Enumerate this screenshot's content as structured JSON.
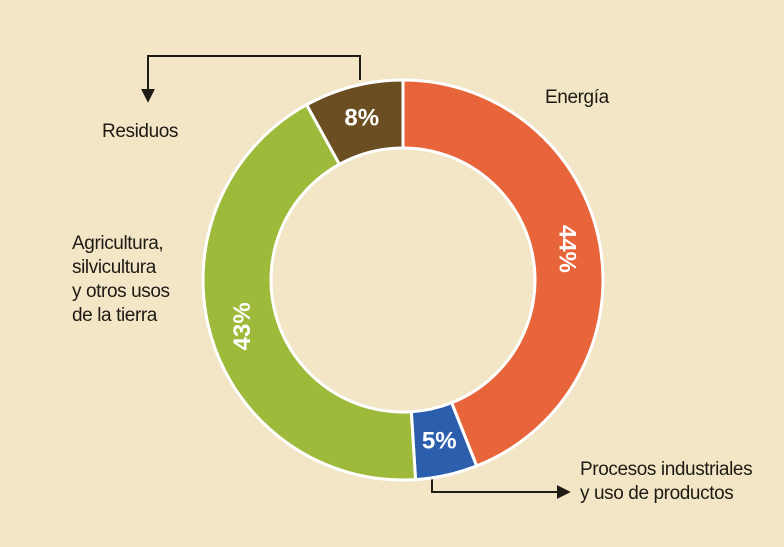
{
  "chart_data": {
    "type": "donut",
    "categories": [
      "Energía",
      "Procesos industriales\ny uso de productos",
      "Agricultura,\nsilvicultura\ny otros usos\nde la tierra",
      "Residuos"
    ],
    "values": [
      44,
      5,
      43,
      8
    ],
    "value_labels": [
      "44%",
      "5%",
      "43%",
      "8%"
    ],
    "colors": [
      "#e8643a",
      "#2c5eae",
      "#9dba3a",
      "#6b4f22"
    ]
  }
}
